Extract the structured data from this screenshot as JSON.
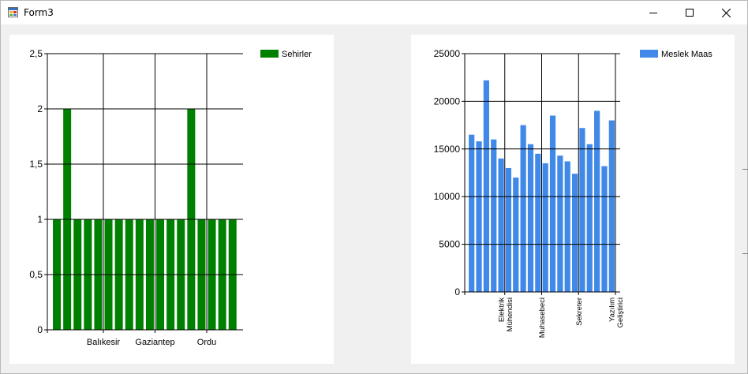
{
  "window": {
    "title": "Form3",
    "icon": "winforms-app-icon",
    "controls": [
      "minimize-icon",
      "maximize-icon",
      "close-icon"
    ]
  },
  "chart_data": [
    {
      "type": "bar",
      "legend": "Sehirler",
      "legend_position": "top-right",
      "color": "#008000",
      "grid": true,
      "ylim": [
        0,
        2.5
      ],
      "yticks": [
        0,
        0.5,
        1,
        1.5,
        2,
        2.5
      ],
      "ytick_labels": [
        "0",
        "0,5",
        "1",
        "1,5",
        "2",
        "2,5"
      ],
      "xtick_labels": [
        {
          "index": 5,
          "label": "Balıkesir"
        },
        {
          "index": 10,
          "label": "Gaziantep"
        },
        {
          "index": 15,
          "label": "Ordu"
        }
      ],
      "series": [
        {
          "name": "Sehirler",
          "values": [
            1,
            2,
            1,
            1,
            1,
            1,
            1,
            1,
            1,
            1,
            1,
            1,
            1,
            2,
            1,
            1,
            1,
            1
          ]
        }
      ]
    },
    {
      "type": "bar",
      "legend": "Meslek Maas",
      "legend_position": "top-right",
      "color": "#4189e8",
      "grid": true,
      "ylim": [
        0,
        25000
      ],
      "yticks": [
        0,
        5000,
        10000,
        15000,
        20000,
        25000
      ],
      "ytick_labels": [
        "0",
        "5000",
        "10000",
        "15000",
        "20000",
        "25000"
      ],
      "xtick_labels": [
        {
          "index": 5,
          "label": "Elektrik Mühendisi"
        },
        {
          "index": 10,
          "label": "Muhasebeci"
        },
        {
          "index": 15,
          "label": "Sekreter"
        },
        {
          "index": 20,
          "label": "Yazılım Geliştirici"
        }
      ],
      "series": [
        {
          "name": "Meslek Maas",
          "values": [
            16500,
            15800,
            22200,
            16000,
            14000,
            13000,
            12000,
            17500,
            15500,
            14500,
            13500,
            18500,
            14300,
            13700,
            12400,
            17200,
            15500,
            19000,
            13200,
            18000
          ]
        }
      ]
    }
  ]
}
